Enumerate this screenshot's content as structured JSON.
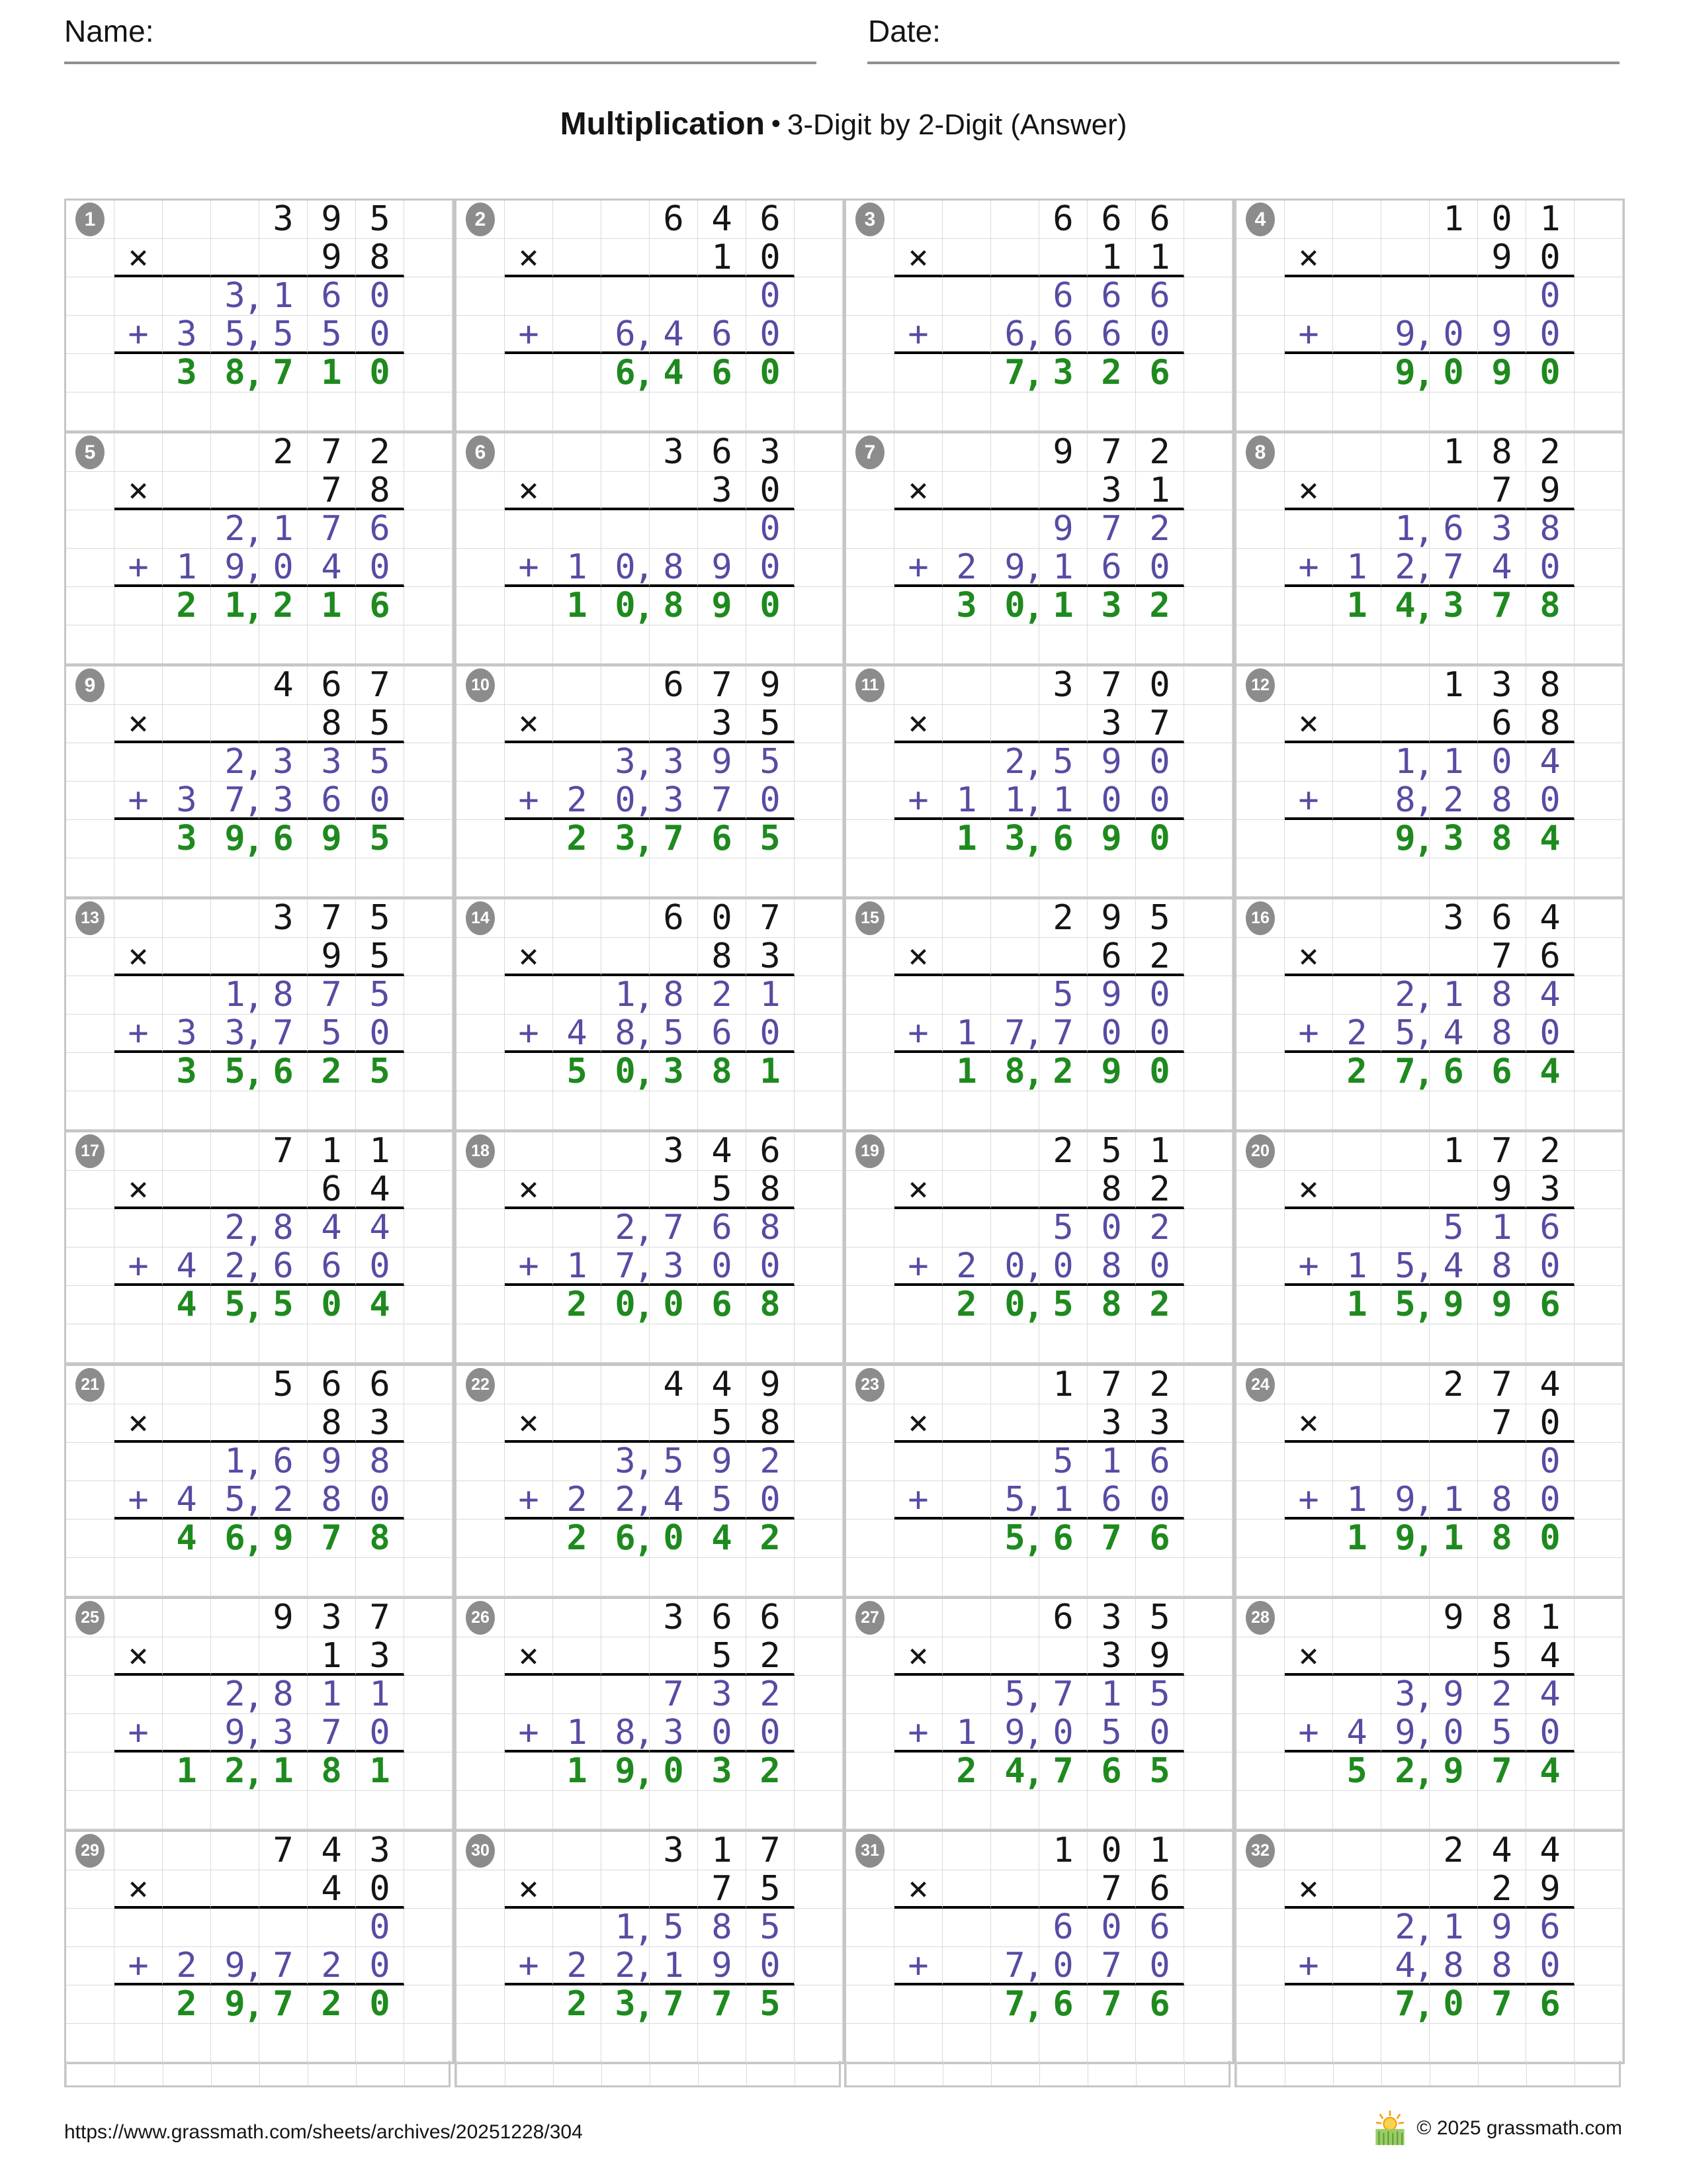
{
  "header": {
    "name_label": "Name:",
    "date_label": "Date:"
  },
  "title": {
    "main": "Multiplication",
    "separator": "•",
    "subtitle": "3-Digit by 2-Digit (Answer)"
  },
  "symbols": {
    "times": "×",
    "plus": "+",
    "comma": ","
  },
  "colors": {
    "operand": "#151515",
    "partial_product": "#564ca3",
    "answer": "#1e8a1e",
    "badge": "#8c8c8c",
    "grid_line": "#dadada",
    "table_border": "#c6c6c6",
    "rule_line": "#000000"
  },
  "problems": [
    {
      "num": 1,
      "multiplicand": "395",
      "multiplier": "98",
      "partial1": "3,160",
      "partial2": "35,550",
      "product": "38,710"
    },
    {
      "num": 2,
      "multiplicand": "646",
      "multiplier": "10",
      "partial1": "0",
      "partial2": "6,460",
      "product": "6,460"
    },
    {
      "num": 3,
      "multiplicand": "666",
      "multiplier": "11",
      "partial1": "666",
      "partial2": "6,660",
      "product": "7,326"
    },
    {
      "num": 4,
      "multiplicand": "101",
      "multiplier": "90",
      "partial1": "0",
      "partial2": "9,090",
      "product": "9,090"
    },
    {
      "num": 5,
      "multiplicand": "272",
      "multiplier": "78",
      "partial1": "2,176",
      "partial2": "19,040",
      "product": "21,216"
    },
    {
      "num": 6,
      "multiplicand": "363",
      "multiplier": "30",
      "partial1": "0",
      "partial2": "10,890",
      "product": "10,890"
    },
    {
      "num": 7,
      "multiplicand": "972",
      "multiplier": "31",
      "partial1": "972",
      "partial2": "29,160",
      "product": "30,132"
    },
    {
      "num": 8,
      "multiplicand": "182",
      "multiplier": "79",
      "partial1": "1,638",
      "partial2": "12,740",
      "product": "14,378"
    },
    {
      "num": 9,
      "multiplicand": "467",
      "multiplier": "85",
      "partial1": "2,335",
      "partial2": "37,360",
      "product": "39,695"
    },
    {
      "num": 10,
      "multiplicand": "679",
      "multiplier": "35",
      "partial1": "3,395",
      "partial2": "20,370",
      "product": "23,765"
    },
    {
      "num": 11,
      "multiplicand": "370",
      "multiplier": "37",
      "partial1": "2,590",
      "partial2": "11,100",
      "product": "13,690"
    },
    {
      "num": 12,
      "multiplicand": "138",
      "multiplier": "68",
      "partial1": "1,104",
      "partial2": "8,280",
      "product": "9,384"
    },
    {
      "num": 13,
      "multiplicand": "375",
      "multiplier": "95",
      "partial1": "1,875",
      "partial2": "33,750",
      "product": "35,625"
    },
    {
      "num": 14,
      "multiplicand": "607",
      "multiplier": "83",
      "partial1": "1,821",
      "partial2": "48,560",
      "product": "50,381"
    },
    {
      "num": 15,
      "multiplicand": "295",
      "multiplier": "62",
      "partial1": "590",
      "partial2": "17,700",
      "product": "18,290"
    },
    {
      "num": 16,
      "multiplicand": "364",
      "multiplier": "76",
      "partial1": "2,184",
      "partial2": "25,480",
      "product": "27,664"
    },
    {
      "num": 17,
      "multiplicand": "711",
      "multiplier": "64",
      "partial1": "2,844",
      "partial2": "42,660",
      "product": "45,504"
    },
    {
      "num": 18,
      "multiplicand": "346",
      "multiplier": "58",
      "partial1": "2,768",
      "partial2": "17,300",
      "product": "20,068"
    },
    {
      "num": 19,
      "multiplicand": "251",
      "multiplier": "82",
      "partial1": "502",
      "partial2": "20,080",
      "product": "20,582"
    },
    {
      "num": 20,
      "multiplicand": "172",
      "multiplier": "93",
      "partial1": "516",
      "partial2": "15,480",
      "product": "15,996"
    },
    {
      "num": 21,
      "multiplicand": "566",
      "multiplier": "83",
      "partial1": "1,698",
      "partial2": "45,280",
      "product": "46,978"
    },
    {
      "num": 22,
      "multiplicand": "449",
      "multiplier": "58",
      "partial1": "3,592",
      "partial2": "22,450",
      "product": "26,042"
    },
    {
      "num": 23,
      "multiplicand": "172",
      "multiplier": "33",
      "partial1": "516",
      "partial2": "5,160",
      "product": "5,676"
    },
    {
      "num": 24,
      "multiplicand": "274",
      "multiplier": "70",
      "partial1": "0",
      "partial2": "19,180",
      "product": "19,180"
    },
    {
      "num": 25,
      "multiplicand": "937",
      "multiplier": "13",
      "partial1": "2,811",
      "partial2": "9,370",
      "product": "12,181"
    },
    {
      "num": 26,
      "multiplicand": "366",
      "multiplier": "52",
      "partial1": "732",
      "partial2": "18,300",
      "product": "19,032"
    },
    {
      "num": 27,
      "multiplicand": "635",
      "multiplier": "39",
      "partial1": "5,715",
      "partial2": "19,050",
      "product": "24,765"
    },
    {
      "num": 28,
      "multiplicand": "981",
      "multiplier": "54",
      "partial1": "3,924",
      "partial2": "49,050",
      "product": "52,974"
    },
    {
      "num": 29,
      "multiplicand": "743",
      "multiplier": "40",
      "partial1": "0",
      "partial2": "29,720",
      "product": "29,720"
    },
    {
      "num": 30,
      "multiplicand": "317",
      "multiplier": "75",
      "partial1": "1,585",
      "partial2": "22,190",
      "product": "23,775"
    },
    {
      "num": 31,
      "multiplicand": "101",
      "multiplier": "76",
      "partial1": "606",
      "partial2": "7,070",
      "product": "7,676"
    },
    {
      "num": 32,
      "multiplicand": "244",
      "multiplier": "29",
      "partial1": "2,196",
      "partial2": "4,880",
      "product": "7,076"
    }
  ],
  "footer": {
    "url": "https://www.grassmath.com/sheets/archives/20251228/304",
    "copyright": "© 2025 grassmath.com",
    "logo": "sun-over-grass-icon"
  }
}
